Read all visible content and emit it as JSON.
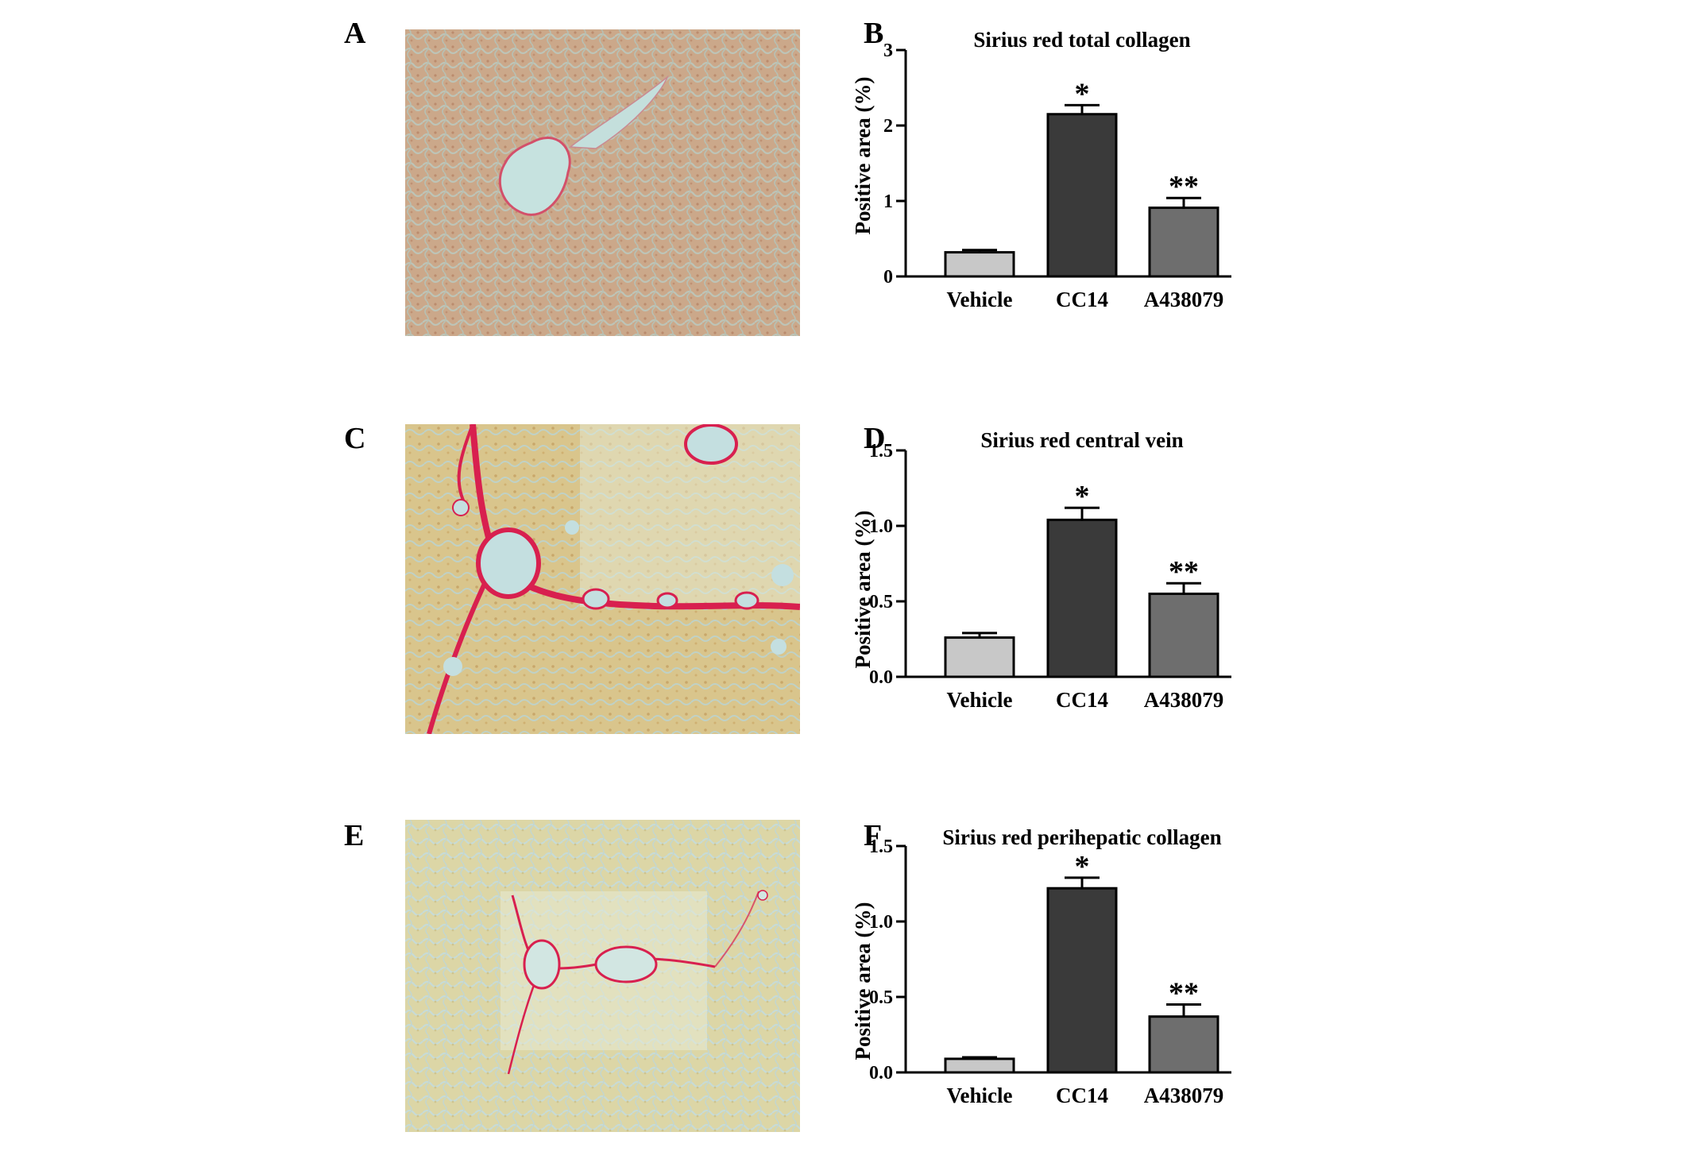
{
  "figure": {
    "panels": [
      {
        "letter": "A",
        "kind": "micrograph",
        "stain": "sirius-red",
        "pattern": "normal"
      },
      {
        "letter": "C",
        "kind": "micrograph",
        "stain": "sirius-red",
        "pattern": "fibrotic"
      },
      {
        "letter": "E",
        "kind": "micrograph",
        "stain": "sirius-red",
        "pattern": "mild"
      }
    ],
    "colors": {
      "vehicle": "#c8c8c8",
      "ccl4": "#3a3a3a",
      "a438079": "#6e6e6e",
      "collagen": "#d8204f"
    }
  },
  "chart_data": [
    {
      "letter": "B",
      "type": "bar",
      "title": "Sirius red total collagen",
      "ylabel": "Positive area (%)",
      "xlabel": "",
      "categories": [
        "Vehicle",
        "CC14",
        "A438079"
      ],
      "values": [
        0.32,
        2.15,
        0.91
      ],
      "errors": [
        0.03,
        0.12,
        0.13
      ],
      "annotations": [
        "",
        "*",
        "**"
      ],
      "ylim": [
        0,
        3
      ],
      "yticks": [
        0,
        1,
        2,
        3
      ],
      "ytick_labels": [
        "0",
        "1",
        "2",
        "3"
      ],
      "grid": false
    },
    {
      "letter": "D",
      "type": "bar",
      "title": "Sirius red central vein",
      "ylabel": "Positive area (%)",
      "xlabel": "",
      "categories": [
        "Vehicle",
        "CC14",
        "A438079"
      ],
      "values": [
        0.26,
        1.04,
        0.55
      ],
      "errors": [
        0.03,
        0.08,
        0.07
      ],
      "annotations": [
        "",
        "*",
        "**"
      ],
      "ylim": [
        0,
        1.5
      ],
      "yticks": [
        0,
        0.5,
        1.0,
        1.5
      ],
      "ytick_labels": [
        "0.0",
        "0.5",
        "1.0",
        "1.5"
      ],
      "grid": false
    },
    {
      "letter": "F",
      "type": "bar",
      "title": "Sirius red perihepatic collagen",
      "ylabel": "Positive area (%)",
      "xlabel": "",
      "categories": [
        "Vehicle",
        "CC14",
        "A438079"
      ],
      "values": [
        0.09,
        1.22,
        0.37
      ],
      "errors": [
        0.01,
        0.07,
        0.08
      ],
      "annotations": [
        "",
        "*",
        "**"
      ],
      "ylim": [
        0,
        1.5
      ],
      "yticks": [
        0,
        0.5,
        1.0,
        1.5
      ],
      "ytick_labels": [
        "0.0",
        "0.5",
        "1.0",
        "1.5"
      ],
      "grid": false
    }
  ]
}
